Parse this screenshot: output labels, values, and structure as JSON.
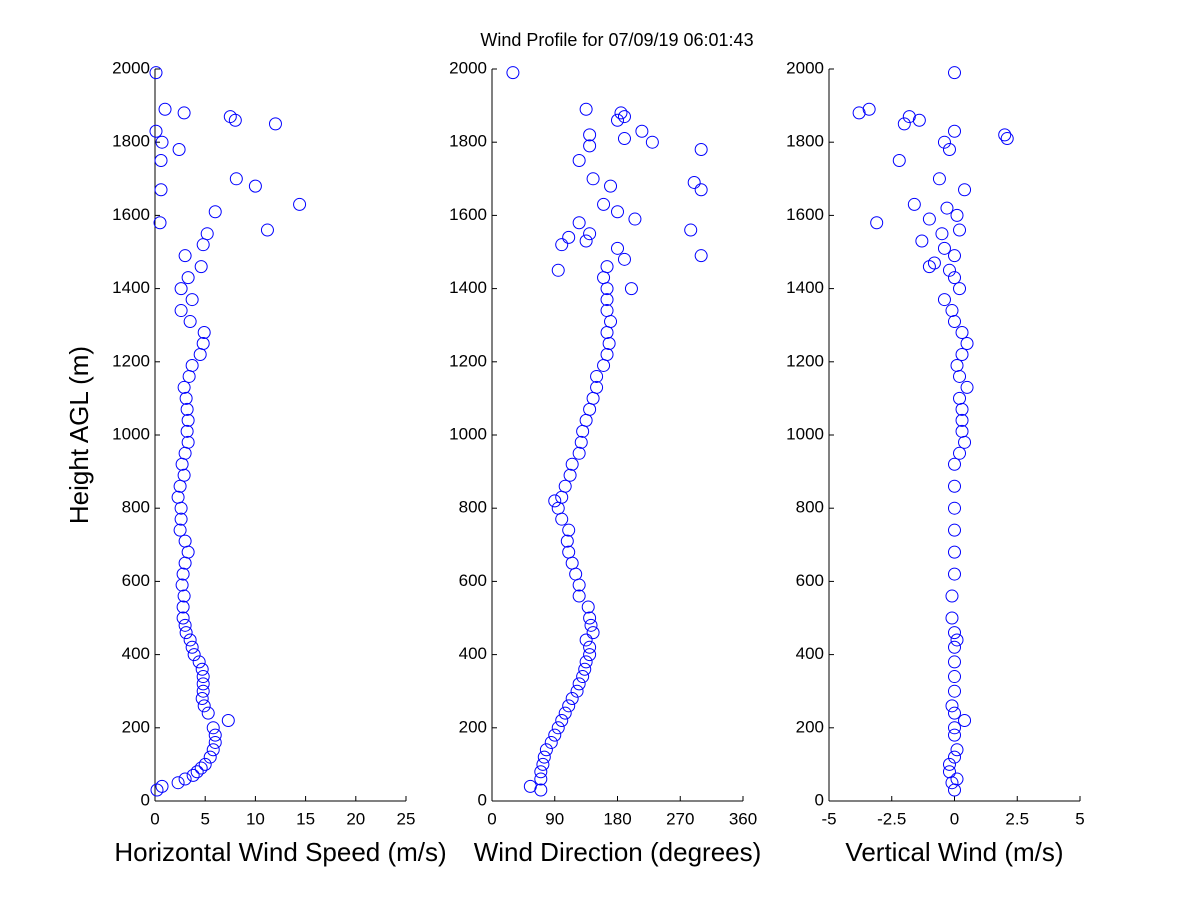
{
  "title": "Wind Profile for  07/09/19 06:01:43",
  "chart_data": [
    {
      "type": "scatter",
      "ylabel": "Height AGL (m)",
      "xlabel": "Horizontal Wind Speed (m/s)",
      "color": "#0000ff",
      "xlim": [
        0,
        25
      ],
      "xticks": [
        0,
        5,
        10,
        15,
        20,
        25
      ],
      "ylim": [
        0,
        2000
      ],
      "yticks": [
        0,
        200,
        400,
        600,
        800,
        1000,
        1200,
        1400,
        1600,
        1800,
        2000
      ],
      "x": [
        0.2,
        0.7,
        2.3,
        3,
        3.8,
        4.2,
        4.6,
        5,
        5.5,
        5.8,
        6,
        6,
        5.8,
        7.3,
        5.3,
        4.9,
        4.7,
        4.8,
        4.8,
        4.8,
        4.7,
        4.4,
        3.9,
        3.7,
        3.5,
        3.1,
        3,
        2.8,
        2.8,
        2.9,
        2.7,
        2.8,
        3,
        3.3,
        3,
        2.5,
        2.6,
        2.6,
        2.3,
        2.5,
        2.9,
        2.7,
        3,
        3.3,
        3.2,
        3.3,
        3.2,
        3.1,
        2.9,
        3.4,
        3.7,
        4.5,
        4.8,
        4.9,
        3.5,
        2.6,
        3.7,
        2.6,
        3.3,
        4.6,
        3,
        4.8,
        5.2,
        0.5,
        6,
        14.4,
        0.6,
        8.1,
        0.6,
        2.4,
        0.7,
        0.1,
        12,
        8,
        2.9,
        0.1,
        1,
        7.5,
        10,
        11.2
      ],
      "y": [
        30,
        40,
        50,
        60,
        70,
        80,
        90,
        100,
        120,
        140,
        160,
        180,
        200,
        220,
        240,
        260,
        280,
        300,
        320,
        340,
        360,
        380,
        400,
        420,
        440,
        460,
        480,
        500,
        530,
        560,
        590,
        620,
        650,
        680,
        710,
        740,
        770,
        800,
        830,
        860,
        890,
        920,
        950,
        980,
        1010,
        1040,
        1070,
        1100,
        1130,
        1160,
        1190,
        1220,
        1250,
        1280,
        1310,
        1340,
        1370,
        1400,
        1430,
        1460,
        1490,
        1520,
        1550,
        1580,
        1610,
        1630,
        1670,
        1700,
        1750,
        1780,
        1800,
        1830,
        1850,
        1860,
        1880,
        1990,
        1890,
        1870,
        1680,
        1560
      ]
    },
    {
      "type": "scatter",
      "xlabel": "Wind Direction (degrees)",
      "color": "#0000ff",
      "xlim": [
        0,
        360
      ],
      "xticks": [
        0,
        90,
        180,
        270,
        360
      ],
      "ylim": [
        0,
        2000
      ],
      "yticks": [
        0,
        200,
        400,
        600,
        800,
        1000,
        1200,
        1400,
        1600,
        1800,
        2000
      ],
      "x": [
        55,
        70,
        70,
        70,
        73,
        75,
        78,
        85,
        90,
        95,
        100,
        105,
        110,
        115,
        122,
        125,
        130,
        133,
        135,
        140,
        140,
        135,
        145,
        142,
        140,
        138,
        125,
        125,
        120,
        115,
        110,
        108,
        110,
        100,
        95,
        90,
        100,
        105,
        112,
        115,
        125,
        128,
        130,
        135,
        140,
        145,
        150,
        150,
        160,
        165,
        168,
        165,
        170,
        165,
        165,
        165,
        160,
        165,
        95,
        100,
        110,
        140,
        180,
        190,
        200,
        285,
        300,
        125,
        180,
        205,
        160,
        170,
        145,
        290,
        300,
        125,
        140,
        300,
        190,
        140,
        230,
        215,
        180,
        185,
        135,
        190,
        30,
        135
      ],
      "y": [
        40,
        30,
        60,
        80,
        100,
        120,
        140,
        160,
        180,
        200,
        220,
        240,
        260,
        280,
        300,
        320,
        340,
        360,
        380,
        400,
        420,
        440,
        460,
        480,
        500,
        530,
        560,
        590,
        620,
        650,
        680,
        710,
        740,
        770,
        800,
        820,
        830,
        860,
        890,
        920,
        950,
        980,
        1010,
        1040,
        1070,
        1100,
        1130,
        1160,
        1190,
        1220,
        1250,
        1280,
        1310,
        1340,
        1370,
        1400,
        1430,
        1460,
        1450,
        1520,
        1540,
        1550,
        1510,
        1480,
        1400,
        1560,
        1490,
        1580,
        1610,
        1590,
        1630,
        1680,
        1700,
        1690,
        1670,
        1750,
        1790,
        1780,
        1810,
        1820,
        1800,
        1830,
        1860,
        1880,
        1890,
        1870,
        1990,
        1530
      ]
    },
    {
      "type": "scatter",
      "xlabel": "Vertical Wind (m/s)",
      "color": "#0000ff",
      "xlim": [
        -5,
        5
      ],
      "xticks": [
        -5,
        -2.5,
        0,
        2.5,
        5
      ],
      "ylim": [
        0,
        2000
      ],
      "yticks": [
        0,
        200,
        400,
        600,
        800,
        1000,
        1200,
        1400,
        1600,
        1800,
        2000
      ],
      "x": [
        0,
        -0.1,
        0.1,
        -0.2,
        -0.2,
        0,
        0.1,
        0,
        0,
        0.4,
        0,
        -0.1,
        0,
        0,
        0,
        0,
        0.1,
        0,
        -0.1,
        -0.1,
        0,
        0,
        0,
        0,
        0,
        0,
        0.2,
        0.4,
        0.3,
        0.3,
        0.3,
        0.2,
        0.5,
        0.2,
        0.1,
        0.3,
        0.5,
        0.3,
        0,
        -0.1,
        -0.4,
        0.2,
        0,
        -0.2,
        -0.8,
        -1,
        0,
        -0.4,
        -1.3,
        -0.5,
        0.2,
        -3.1,
        0.1,
        -1,
        -1.6,
        -0.3,
        0.4,
        -0.6,
        -2.2,
        -0.2,
        -0.4,
        0,
        -1.4,
        -2,
        2,
        2.1,
        -1.8,
        -3.4,
        -3.8,
        0
      ],
      "y": [
        30,
        50,
        60,
        80,
        100,
        120,
        140,
        180,
        200,
        220,
        240,
        260,
        300,
        340,
        380,
        420,
        440,
        460,
        500,
        560,
        620,
        680,
        740,
        800,
        860,
        920,
        950,
        980,
        1010,
        1040,
        1070,
        1100,
        1130,
        1160,
        1190,
        1220,
        1250,
        1280,
        1310,
        1340,
        1370,
        1400,
        1430,
        1450,
        1470,
        1460,
        1490,
        1510,
        1530,
        1550,
        1560,
        1580,
        1600,
        1590,
        1630,
        1620,
        1670,
        1700,
        1750,
        1780,
        1800,
        1830,
        1860,
        1850,
        1820,
        1810,
        1870,
        1890,
        1880,
        1990
      ]
    }
  ]
}
